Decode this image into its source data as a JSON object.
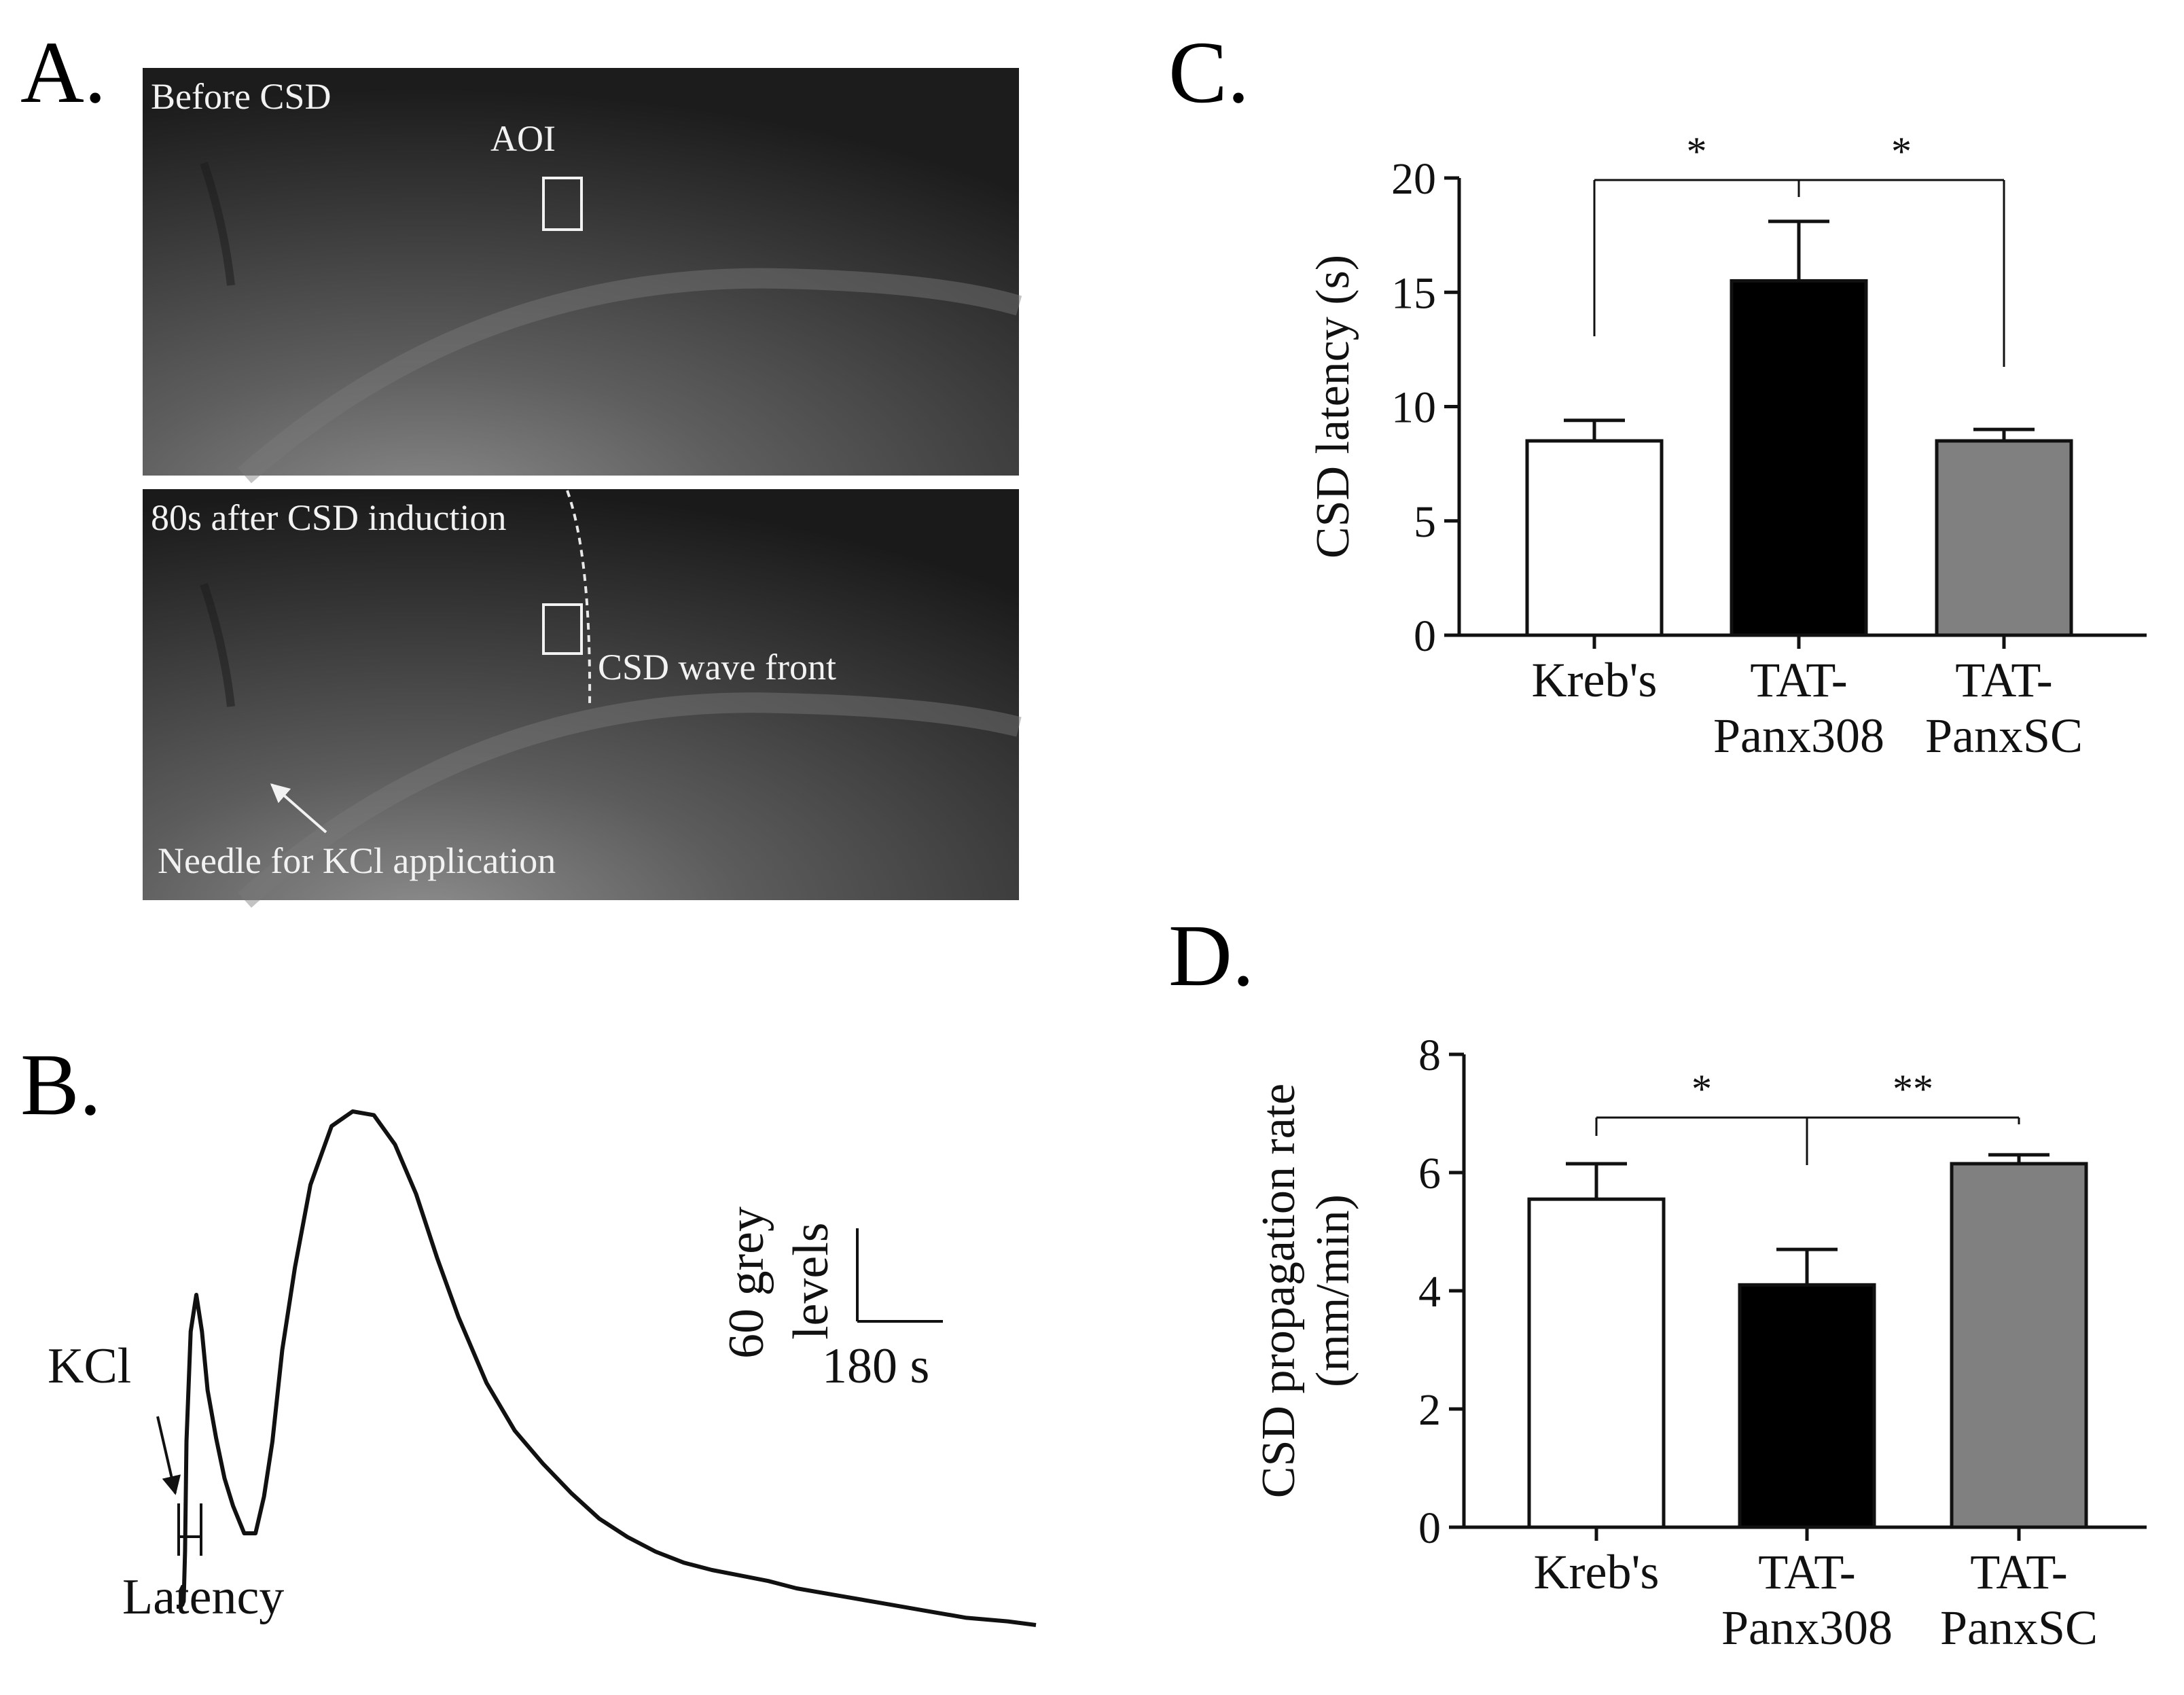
{
  "panels": {
    "a": {
      "label": "A.",
      "top_caption": "Before CSD",
      "aoi": "AOI",
      "bottom_caption": "80s after CSD induction",
      "wave_front": "CSD wave front",
      "needle": "Needle  for KCl application"
    },
    "b": {
      "label": "B.",
      "kcl": "KCl",
      "latency": "Latency",
      "scale_y_line1": "60 grey",
      "scale_y_line2": "levels",
      "scale_x": "180 s"
    },
    "c": {
      "label": "C."
    },
    "d": {
      "label": "D."
    }
  },
  "colors": {
    "kreb": "#ffffff",
    "panx308": "#000000",
    "panxsc": "#808080",
    "axis": "#111111"
  },
  "chart_data": [
    {
      "id": "c",
      "type": "bar",
      "categories": [
        [
          "Kreb's"
        ],
        [
          "TAT-",
          "Panx308"
        ],
        [
          "TAT-",
          "PanxSC"
        ]
      ],
      "values": [
        8.5,
        15.5,
        8.5
      ],
      "errors": [
        0.9,
        2.6,
        0.5
      ],
      "ylabel": [
        "CSD latency (s)"
      ],
      "ylim": [
        0,
        20
      ],
      "yticks": [
        0,
        5,
        10,
        15,
        20
      ],
      "significance": [
        {
          "from": 0,
          "to": 1,
          "label": "*"
        },
        {
          "from": 1,
          "to": 2,
          "label": "*"
        }
      ]
    },
    {
      "id": "d",
      "type": "bar",
      "categories": [
        [
          "Kreb's"
        ],
        [
          "TAT-",
          "Panx308"
        ],
        [
          "TAT-",
          "PanxSC"
        ]
      ],
      "values": [
        5.55,
        4.1,
        6.15
      ],
      "errors": [
        0.6,
        0.6,
        0.15
      ],
      "ylabel": [
        "CSD propagation rate",
        "(mm/min)"
      ],
      "ylim": [
        0,
        8
      ],
      "yticks": [
        0,
        2,
        4,
        6,
        8
      ],
      "significance": [
        {
          "from": 0,
          "to": 1,
          "label": "*"
        },
        {
          "from": 1,
          "to": 2,
          "label": "**"
        }
      ]
    },
    {
      "id": "b",
      "type": "line",
      "title": "",
      "x": [
        0,
        2,
        4,
        5,
        6,
        7,
        10,
        14,
        18,
        22,
        28,
        34,
        40,
        48,
        56,
        62,
        68,
        75,
        84,
        95,
        110,
        125,
        140,
        155,
        170,
        185,
        200,
        220,
        240,
        260,
        280,
        300,
        320,
        340,
        360,
        380,
        400,
        420,
        440,
        470,
        500,
        530,
        560,
        590,
        610
      ],
      "values": [
        0,
        0,
        1,
        3,
        30,
        90,
        150,
        170,
        150,
        118,
        92,
        70,
        55,
        40,
        40,
        60,
        90,
        140,
        185,
        230,
        262,
        270,
        268,
        252,
        225,
        190,
        158,
        122,
        96,
        78,
        62,
        48,
        38,
        30,
        24,
        20,
        17,
        14,
        10,
        6,
        2,
        -2,
        -6,
        -8,
        -10
      ],
      "xlabel": "",
      "ylabel": ""
    }
  ]
}
